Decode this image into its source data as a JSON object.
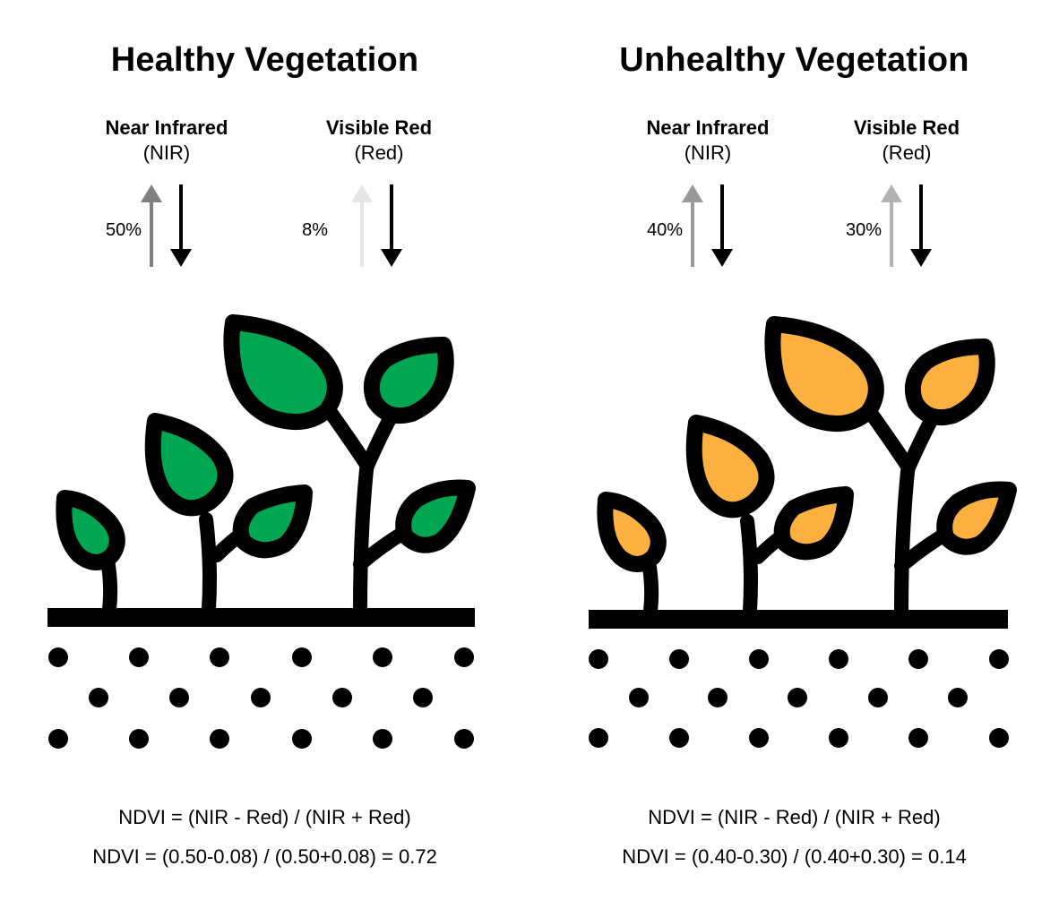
{
  "colors": {
    "healthy_leaf": "#00A651",
    "unhealthy_leaf": "#FBB040",
    "outline": "#000000",
    "reflect_arrow_healthy_nir": "#808080",
    "reflect_arrow_healthy_red": "#E6E6E6",
    "reflect_arrow_unhealthy_nir": "#999999",
    "reflect_arrow_unhealthy_red": "#B3B3B3"
  },
  "panels": [
    {
      "title": "Healthy Vegetation",
      "leaf_color_key": "healthy_leaf",
      "bands": [
        {
          "name": "Near Infrared",
          "abbr": "(NIR)",
          "reflectance": "50%",
          "reflectance_value": 0.5
        },
        {
          "name": "Visible Red",
          "abbr": "(Red)",
          "reflectance": "8%",
          "reflectance_value": 0.08
        }
      ],
      "formula": "NDVI = (NIR - Red) / (NIR + Red)",
      "calculation": "NDVI = (0.50-0.08) / (0.50+0.08) = 0.72"
    },
    {
      "title": "Unhealthy Vegetation",
      "leaf_color_key": "unhealthy_leaf",
      "bands": [
        {
          "name": "Near Infrared",
          "abbr": "(NIR)",
          "reflectance": "40%",
          "reflectance_value": 0.4
        },
        {
          "name": "Visible Red",
          "abbr": "(Red)",
          "reflectance": "30%",
          "reflectance_value": 0.3
        }
      ],
      "formula": "NDVI = (NIR - Red) / (NIR + Red)",
      "calculation": "NDVI = (0.40-0.30) / (0.40+0.30) = 0.14"
    }
  ]
}
